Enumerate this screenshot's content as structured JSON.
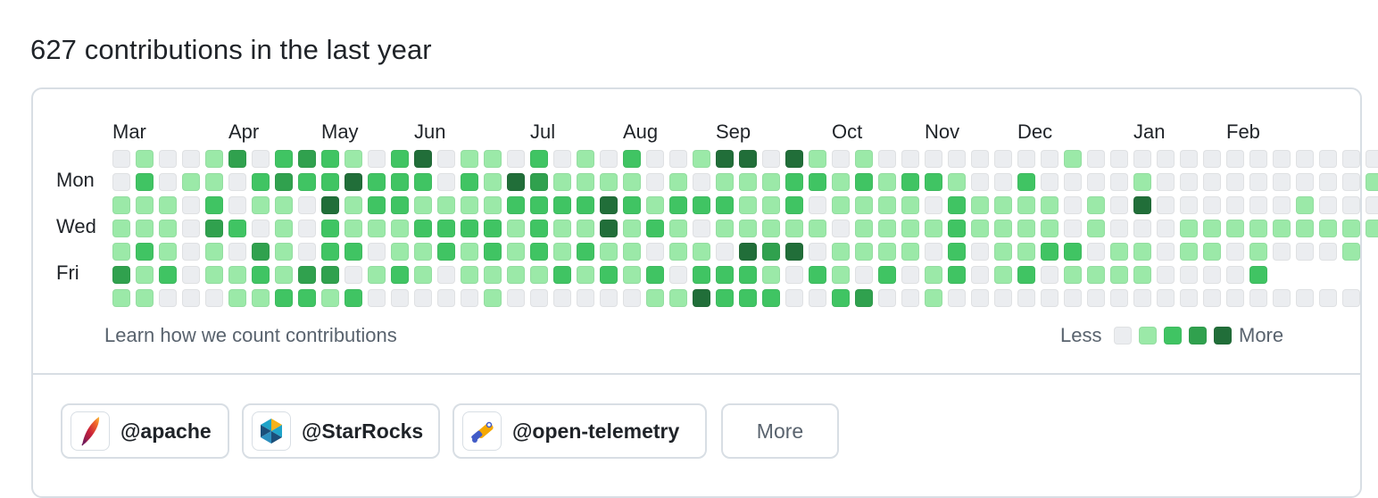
{
  "heading": "627 contributions in the last year",
  "months": [
    "Mar",
    "Apr",
    "May",
    "Jun",
    "Jul",
    "Aug",
    "Sep",
    "Oct",
    "Nov",
    "Dec",
    "Jan",
    "Feb"
  ],
  "day_labels": [
    "Mon",
    "Wed",
    "Fri"
  ],
  "contribution_grid": [
    [
      0,
      1,
      0,
      0,
      1,
      3,
      0,
      2,
      3,
      2,
      1,
      0,
      2,
      4,
      0,
      1,
      1,
      0,
      2,
      0,
      1,
      0,
      2,
      0,
      0,
      1,
      4,
      4,
      0,
      4,
      1,
      0,
      1,
      0,
      0,
      0,
      0,
      0,
      0,
      0,
      0,
      1,
      0,
      0,
      0,
      0,
      0,
      0,
      0,
      0,
      0,
      0,
      0,
      0,
      0
    ],
    [
      0,
      2,
      0,
      1,
      1,
      0,
      2,
      3,
      2,
      2,
      4,
      2,
      2,
      2,
      0,
      2,
      1,
      4,
      3,
      1,
      1,
      1,
      1,
      0,
      1,
      0,
      1,
      1,
      1,
      2,
      2,
      1,
      2,
      1,
      2,
      2,
      1,
      0,
      0,
      2,
      0,
      0,
      0,
      0,
      1,
      0,
      0,
      0,
      0,
      0,
      0,
      0,
      0,
      0,
      1
    ],
    [
      1,
      1,
      1,
      0,
      2,
      0,
      1,
      1,
      0,
      4,
      1,
      2,
      2,
      1,
      1,
      1,
      1,
      2,
      2,
      2,
      2,
      4,
      2,
      1,
      2,
      2,
      2,
      1,
      1,
      2,
      0,
      1,
      1,
      1,
      1,
      0,
      2,
      1,
      1,
      1,
      1,
      0,
      1,
      0,
      4,
      0,
      0,
      0,
      0,
      0,
      0,
      1,
      0,
      0,
      0
    ],
    [
      1,
      1,
      1,
      0,
      3,
      2,
      0,
      1,
      0,
      2,
      1,
      1,
      1,
      2,
      2,
      2,
      2,
      1,
      2,
      1,
      1,
      4,
      1,
      2,
      1,
      0,
      1,
      1,
      1,
      1,
      1,
      0,
      1,
      1,
      1,
      1,
      2,
      1,
      1,
      1,
      1,
      0,
      1,
      0,
      0,
      0,
      1,
      1,
      1,
      1,
      1,
      1,
      1,
      1,
      1
    ],
    [
      1,
      2,
      1,
      0,
      1,
      0,
      3,
      1,
      0,
      2,
      2,
      0,
      1,
      1,
      2,
      1,
      2,
      1,
      2,
      1,
      2,
      1,
      1,
      0,
      1,
      1,
      0,
      4,
      3,
      4,
      0,
      1,
      1,
      1,
      1,
      0,
      2,
      0,
      1,
      1,
      2,
      2,
      0,
      1,
      1,
      0,
      1,
      1,
      0,
      1,
      0,
      0,
      0,
      1
    ],
    [
      3,
      1,
      2,
      0,
      1,
      1,
      2,
      1,
      3,
      3,
      0,
      1,
      2,
      1,
      0,
      1,
      1,
      1,
      1,
      2,
      1,
      2,
      1,
      2,
      0,
      2,
      2,
      2,
      1,
      0,
      2,
      1,
      0,
      2,
      0,
      1,
      2,
      0,
      1,
      2,
      0,
      1,
      1,
      1,
      1,
      0,
      0,
      0,
      0,
      2
    ],
    [
      1,
      1,
      0,
      0,
      0,
      1,
      1,
      2,
      2,
      1,
      2,
      0,
      0,
      0,
      0,
      0,
      1,
      0,
      0,
      0,
      0,
      0,
      0,
      1,
      1,
      4,
      2,
      2,
      2,
      0,
      0,
      2,
      3,
      0,
      0,
      1,
      0,
      0,
      0,
      0,
      0,
      0,
      0,
      0,
      0,
      0,
      0,
      0,
      0,
      0,
      0,
      0,
      0,
      0
    ]
  ],
  "learn_link": "Learn how we count contributions",
  "legend": {
    "less": "Less",
    "more": "More"
  },
  "organizations": [
    {
      "label": "@apache",
      "icon": "apache-feather-icon"
    },
    {
      "label": "@StarRocks",
      "icon": "starrocks-logo-icon"
    },
    {
      "label": "@open-telemetry",
      "icon": "opentelemetry-telescope-icon"
    }
  ],
  "more_button": "More",
  "colors": {
    "l0": "#ebedf0",
    "l1": "#9be9a8",
    "l2": "#40c463",
    "l3": "#30a14e",
    "l4": "#216e39"
  }
}
